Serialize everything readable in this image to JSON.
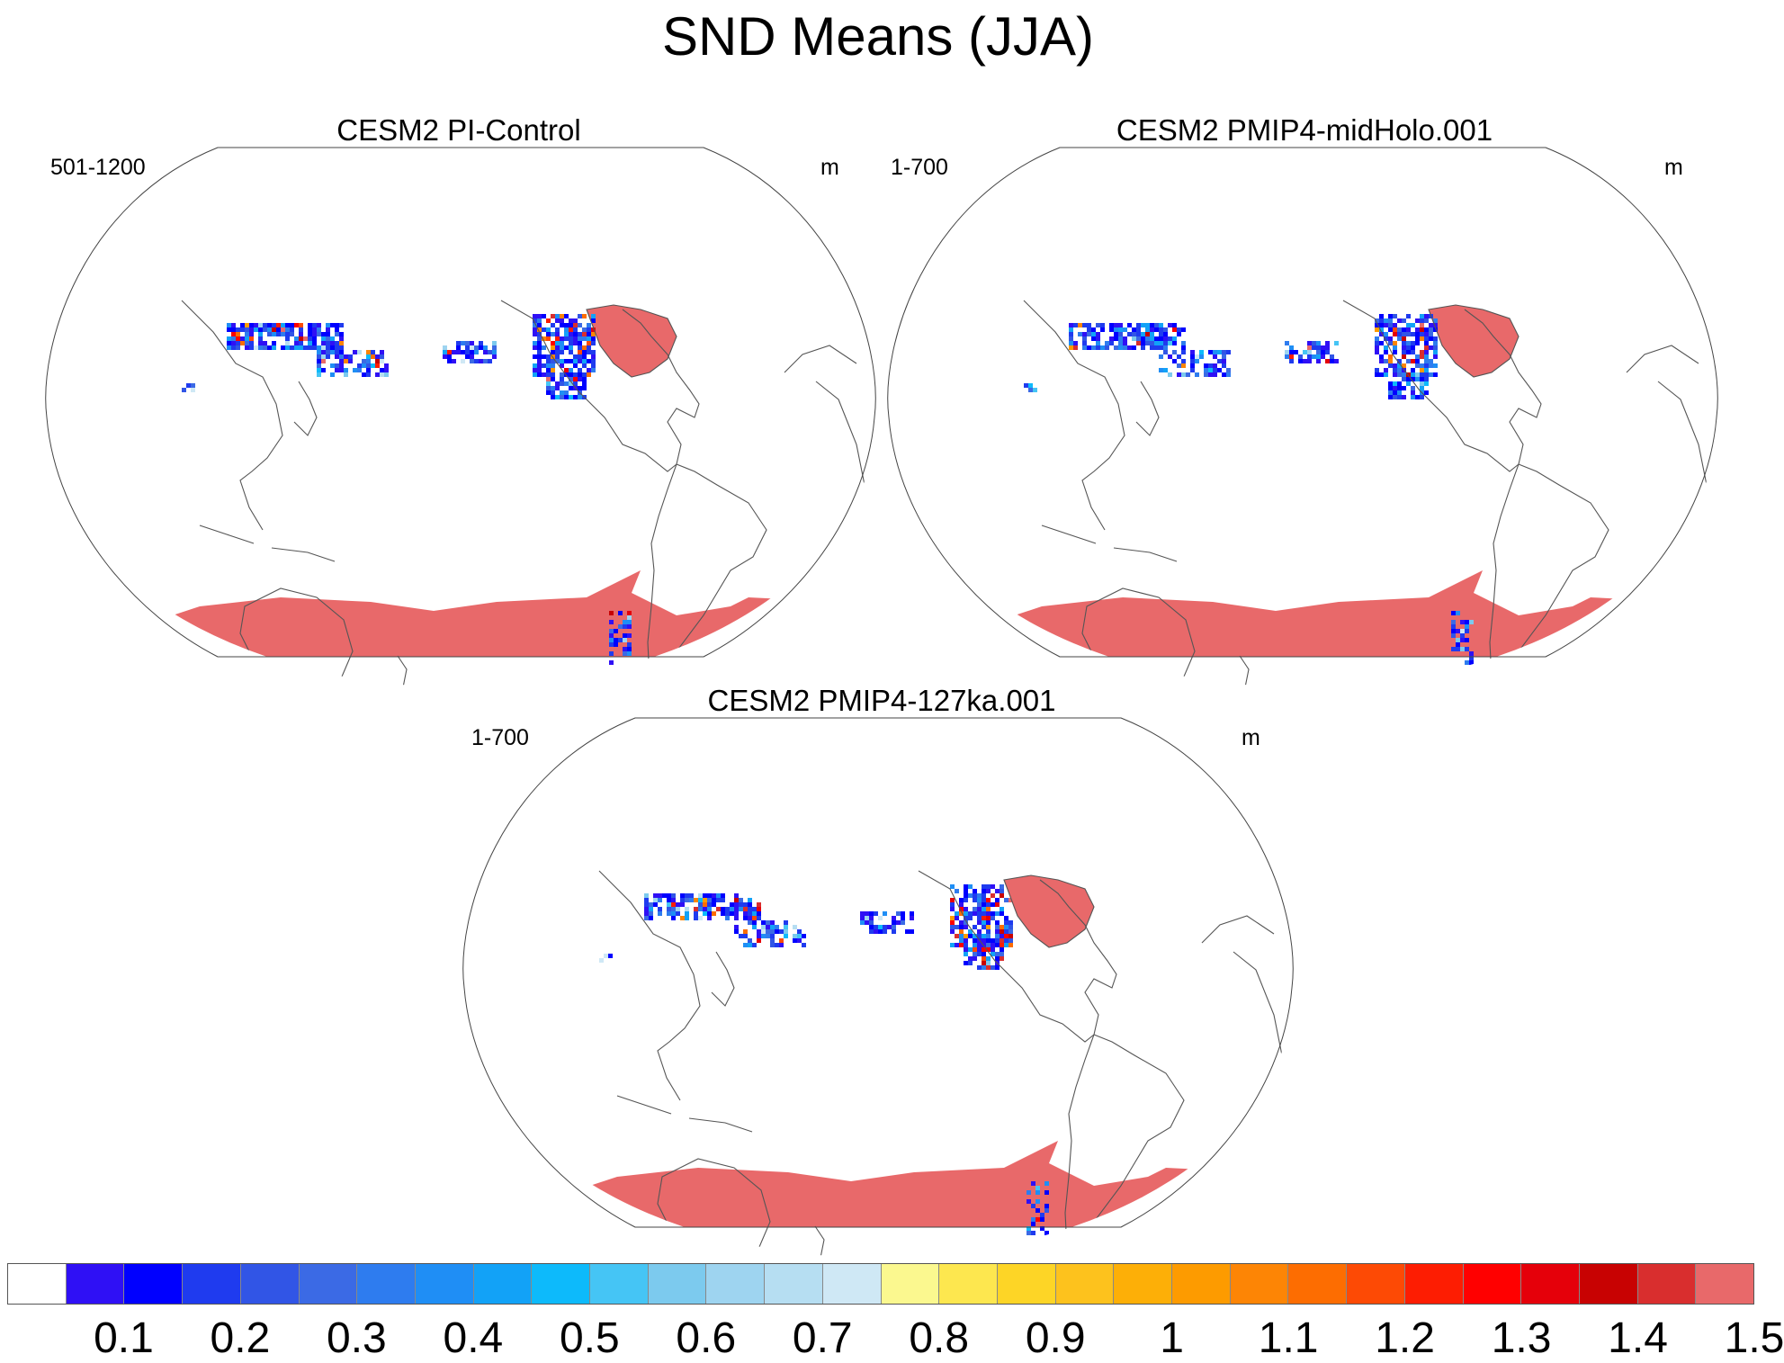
{
  "title": "SND Means (JJA)",
  "panels": [
    {
      "id": "pi",
      "title": "CESM2 PI-Control",
      "left_label": "501-1200",
      "unit": "m"
    },
    {
      "id": "mh",
      "title": "CESM2 PMIP4-midHolo.001",
      "left_label": "1-700",
      "unit": "m"
    },
    {
      "id": "lig",
      "title": "CESM2 PMIP4-127ka.001",
      "left_label": "1-700",
      "unit": "m"
    }
  ],
  "colorbar": {
    "colors": [
      "#ffffff",
      "#2f10f5",
      "#0000ff",
      "#1f3bef",
      "#3155e6",
      "#3b6ae5",
      "#2e7cef",
      "#1f8ef5",
      "#12a2f7",
      "#0dbafb",
      "#45c5f5",
      "#7ccaee",
      "#9ed4f0",
      "#b6def2",
      "#cfe8f5",
      "#fbf88f",
      "#fde74f",
      "#fdd526",
      "#fdc21d",
      "#fdaf07",
      "#fd9b00",
      "#fd8505",
      "#fd6d01",
      "#fd4a05",
      "#fd1d02",
      "#ff0000",
      "#e5000a",
      "#c80202",
      "#d92e2e",
      "#e8696a"
    ],
    "tick_labels": [
      "0.1",
      "0.2",
      "0.3",
      "0.4",
      "0.5",
      "0.6",
      "0.7",
      "0.8",
      "0.9",
      "1",
      "1.1",
      "1.2",
      "1.3",
      "1.4",
      "1.5"
    ]
  }
}
